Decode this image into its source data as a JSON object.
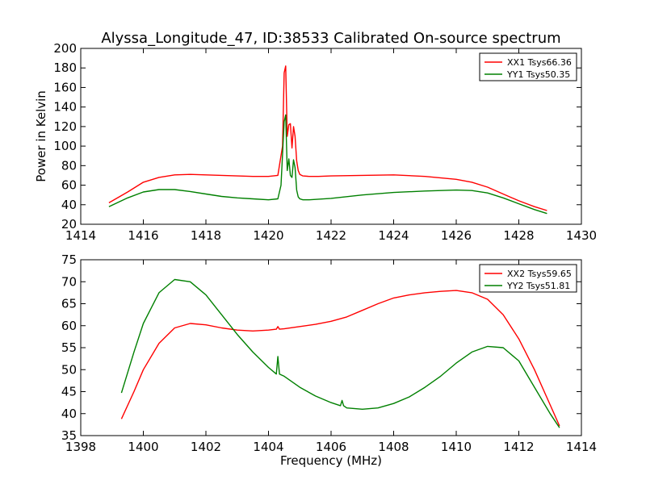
{
  "figure": {
    "title": "Alyssa_Longitude_47, ID:38533 Calibrated On-source spectrum"
  },
  "colors": {
    "xx": "#ff0000",
    "yy": "#008000"
  },
  "chart_data": [
    {
      "type": "line",
      "title": "Alyssa_Longitude_47, ID:38533 Calibrated On-source spectrum",
      "xlabel": "",
      "ylabel": "Power in Kelvin",
      "xlim": [
        1414,
        1430
      ],
      "ylim": [
        20,
        200
      ],
      "xticks": [
        "1414",
        "1416",
        "1418",
        "1420",
        "1422",
        "1424",
        "1426",
        "1428",
        "1430"
      ],
      "yticks": [
        "20",
        "40",
        "60",
        "80",
        "100",
        "120",
        "140",
        "160",
        "180",
        "200"
      ],
      "legend": "top-right",
      "grid": false,
      "series": [
        {
          "name": "XX1 Tsys66.36",
          "color": "#ff0000",
          "x": [
            1414.9,
            1415.5,
            1416.0,
            1416.5,
            1417.0,
            1417.5,
            1418.0,
            1418.5,
            1419.0,
            1419.5,
            1420.0,
            1420.3,
            1420.45,
            1420.5,
            1420.55,
            1420.6,
            1420.65,
            1420.7,
            1420.75,
            1420.8,
            1420.85,
            1420.9,
            1420.95,
            1421.0,
            1421.1,
            1421.3,
            1421.6,
            1422.0,
            1423.0,
            1424.0,
            1425.0,
            1426.0,
            1426.5,
            1427.0,
            1427.5,
            1428.0,
            1428.5,
            1428.9
          ],
          "y": [
            42,
            53,
            63,
            68,
            70.5,
            71,
            70.5,
            70,
            69.5,
            69,
            69,
            70,
            100,
            175,
            182,
            110,
            122,
            123,
            98,
            120,
            110,
            85,
            75,
            71,
            69.5,
            69,
            69,
            69.5,
            70,
            70.5,
            69,
            66,
            63,
            58,
            51,
            44,
            38,
            34
          ]
        },
        {
          "name": "YY1 Tsys50.35",
          "color": "#008000",
          "x": [
            1414.9,
            1415.5,
            1416.0,
            1416.5,
            1417.0,
            1417.5,
            1418.0,
            1418.5,
            1419.0,
            1419.5,
            1420.0,
            1420.3,
            1420.4,
            1420.5,
            1420.55,
            1420.6,
            1420.65,
            1420.7,
            1420.75,
            1420.8,
            1420.85,
            1420.9,
            1420.95,
            1421.0,
            1421.1,
            1421.3,
            1422.0,
            1423.0,
            1424.0,
            1425.0,
            1426.0,
            1426.5,
            1427.0,
            1427.5,
            1428.0,
            1428.5,
            1428.9
          ],
          "y": [
            38,
            47,
            53,
            55.5,
            55.5,
            53.5,
            51,
            48.5,
            47,
            46,
            45,
            46,
            60,
            125,
            132,
            75,
            87,
            70,
            68,
            86,
            78,
            55,
            48,
            46,
            45,
            45,
            46.5,
            50,
            52.5,
            54,
            55,
            54.5,
            52,
            47,
            41,
            35,
            31
          ]
        }
      ]
    },
    {
      "type": "line",
      "title": "",
      "xlabel": "Frequency (MHz)",
      "ylabel": "",
      "xlim": [
        1398,
        1414
      ],
      "ylim": [
        35,
        75
      ],
      "xticks": [
        "1398",
        "1400",
        "1402",
        "1404",
        "1406",
        "1408",
        "1410",
        "1412",
        "1414"
      ],
      "yticks": [
        "35",
        "40",
        "45",
        "50",
        "55",
        "60",
        "65",
        "70",
        "75"
      ],
      "legend": "top-right",
      "grid": false,
      "series": [
        {
          "name": "XX2 Tsys59.65",
          "color": "#ff0000",
          "x": [
            1399.3,
            1399.7,
            1400.0,
            1400.5,
            1401.0,
            1401.5,
            1402.0,
            1402.5,
            1403.0,
            1403.5,
            1404.0,
            1404.25,
            1404.3,
            1404.35,
            1404.5,
            1405.0,
            1405.5,
            1406.0,
            1406.5,
            1407.0,
            1407.5,
            1408.0,
            1408.5,
            1409.0,
            1409.5,
            1410.0,
            1410.5,
            1411.0,
            1411.5,
            1412.0,
            1412.5,
            1413.0,
            1413.3
          ],
          "y": [
            38.8,
            45,
            50,
            56,
            59.5,
            60.5,
            60.2,
            59.5,
            59,
            58.8,
            59,
            59.2,
            59.8,
            59.2,
            59.3,
            59.8,
            60.3,
            61,
            62,
            63.5,
            65,
            66.3,
            67,
            67.5,
            67.8,
            68,
            67.5,
            66,
            62.5,
            57,
            50,
            42,
            37.2
          ]
        },
        {
          "name": "YY2 Tsys51.81",
          "color": "#008000",
          "x": [
            1399.3,
            1399.7,
            1400.0,
            1400.5,
            1401.0,
            1401.5,
            1402.0,
            1402.5,
            1403.0,
            1403.5,
            1404.0,
            1404.25,
            1404.3,
            1404.35,
            1404.5,
            1405.0,
            1405.5,
            1406.0,
            1406.3,
            1406.35,
            1406.4,
            1406.5,
            1407.0,
            1407.5,
            1408.0,
            1408.5,
            1409.0,
            1409.5,
            1410.0,
            1410.5,
            1411.0,
            1411.5,
            1412.0,
            1412.5,
            1413.0,
            1413.3
          ],
          "y": [
            44.7,
            54,
            60.5,
            67.5,
            70.5,
            70,
            67,
            62.5,
            58,
            54,
            50.5,
            49,
            53,
            49,
            48.5,
            46,
            44,
            42.5,
            41.8,
            43,
            41.8,
            41.3,
            41,
            41.3,
            42.3,
            43.8,
            46,
            48.5,
            51.5,
            54,
            55.3,
            55,
            52,
            46,
            40,
            36.8
          ]
        }
      ]
    }
  ]
}
